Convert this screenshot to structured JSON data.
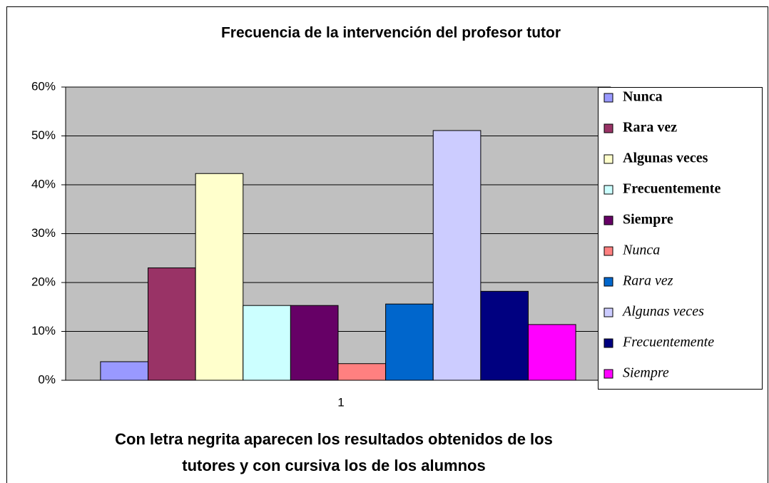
{
  "chart_data": {
    "type": "bar",
    "title": "Frecuencia de la intervención del profesor tutor",
    "categories": [
      "1"
    ],
    "series": [
      {
        "name": "Nunca",
        "color": "#9999ff",
        "style": "bold",
        "values": [
          3.8
        ]
      },
      {
        "name": "Rara vez",
        "color": "#993366",
        "style": "bold",
        "values": [
          23.0
        ]
      },
      {
        "name": "Algunas veces",
        "color": "#ffffcc",
        "style": "bold",
        "values": [
          42.3
        ]
      },
      {
        "name": "Frecuentemente",
        "color": "#ccffff",
        "style": "bold",
        "values": [
          15.3
        ]
      },
      {
        "name": "Siempre",
        "color": "#660066",
        "style": "bold",
        "values": [
          15.3
        ]
      },
      {
        "name": "Nunca",
        "color": "#ff8080",
        "style": "italic",
        "values": [
          3.4
        ]
      },
      {
        "name": "Rara vez",
        "color": "#0066cc",
        "style": "italic",
        "values": [
          15.6
        ]
      },
      {
        "name": "Algunas veces",
        "color": "#ccccff",
        "style": "italic",
        "values": [
          51.1
        ]
      },
      {
        "name": "Frecuentemente",
        "color": "#000080",
        "style": "italic",
        "values": [
          18.2
        ]
      },
      {
        "name": "Siempre",
        "color": "#ff00ff",
        "style": "italic",
        "values": [
          11.4
        ]
      }
    ],
    "ylim": [
      0,
      60
    ],
    "yticks": [
      {
        "value": 0,
        "label": "0%"
      },
      {
        "value": 10,
        "label": "10%"
      },
      {
        "value": 20,
        "label": "20%"
      },
      {
        "value": 30,
        "label": "30%"
      },
      {
        "value": 40,
        "label": "40%"
      },
      {
        "value": 50,
        "label": "50%"
      },
      {
        "value": 60,
        "label": "60%"
      }
    ],
    "grid": true,
    "legend": "right",
    "annotation": [
      "Con letra negrita aparecen los resultados obtenidos de los",
      "tutores y con cursiva los de los alumnos"
    ]
  }
}
